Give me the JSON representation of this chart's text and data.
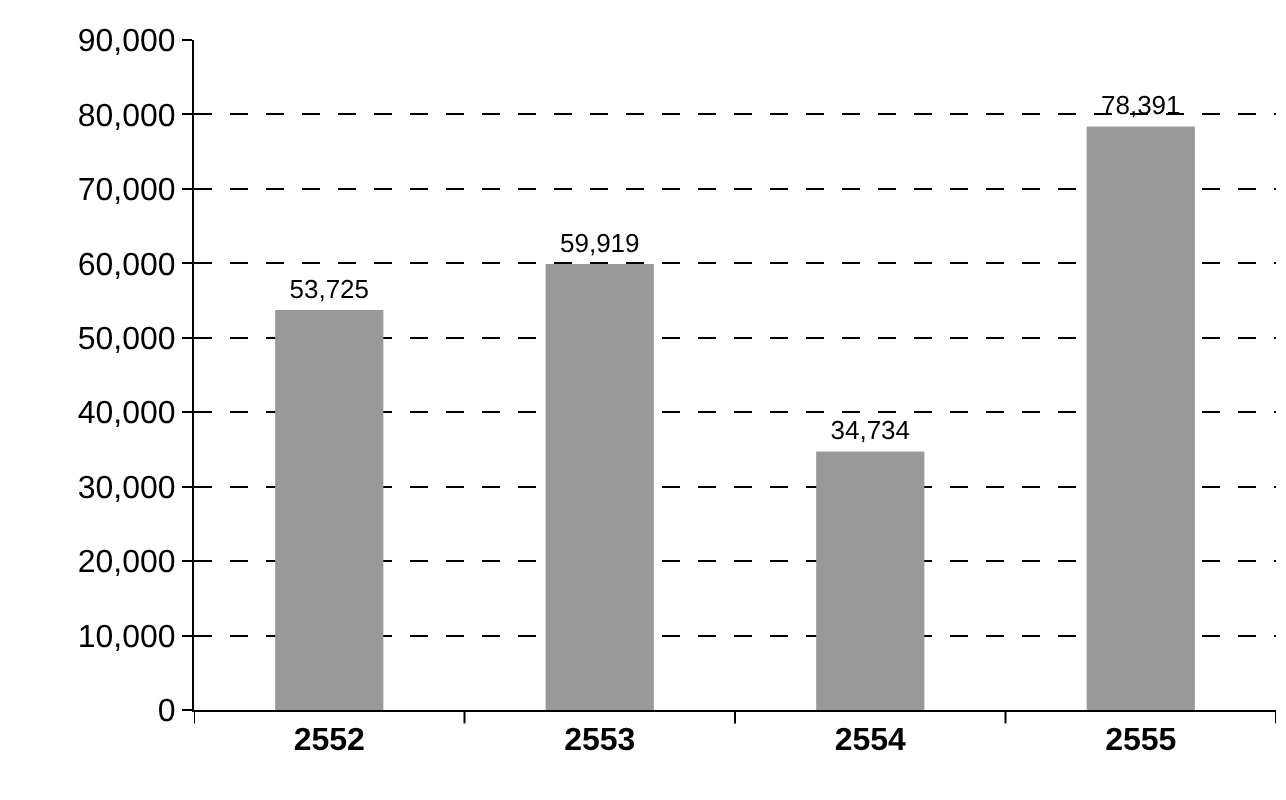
{
  "chart_data": {
    "type": "bar",
    "categories": [
      "2552",
      "2553",
      "2554",
      "2555"
    ],
    "values": [
      53725,
      59919,
      34734,
      78391
    ],
    "value_labels": [
      "53,725",
      "59,919",
      "34,734",
      "78,391"
    ],
    "color": "#999999",
    "ylim": [
      0,
      90000
    ],
    "yticks": [
      0,
      {
        "value": 10000,
        "label": "10,000"
      },
      {
        "value": 20000,
        "label": "20,000"
      },
      {
        "value": 30000,
        "label": "30,000"
      },
      {
        "value": 40000,
        "label": "40,000"
      },
      {
        "value": 50000,
        "label": "50,000"
      },
      {
        "value": 60000,
        "label": "60,000"
      },
      {
        "value": 70000,
        "label": "70,000"
      },
      {
        "value": 80000,
        "label": "80,000"
      },
      {
        "value": 90000,
        "label": "90,000"
      }
    ],
    "grid": "y",
    "line_style": "dashed",
    "legend": false
  }
}
